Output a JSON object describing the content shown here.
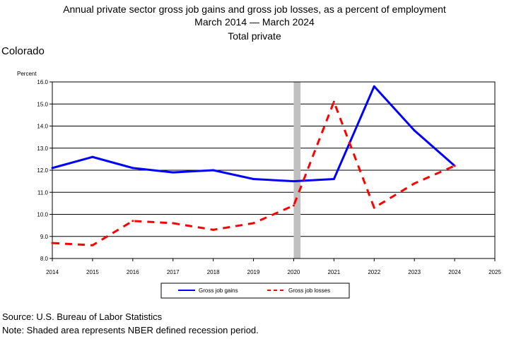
{
  "header": {
    "title_line1": "Annual private sector gross job gains and gross job losses, as a percent of employment",
    "title_line2": "March 2014 — March 2024",
    "title_line3": "Total private",
    "region": "Colorado"
  },
  "footer": {
    "source": "Source: U.S. Bureau of Labor Statistics",
    "note": "Note: Shaded area represents NBER defined recession period."
  },
  "chart_data": {
    "type": "line",
    "ylabel": "Percent",
    "xlabel": "",
    "xlim": [
      2014,
      2025
    ],
    "ylim": [
      8.0,
      16.0
    ],
    "x_ticks": [
      2014,
      2015,
      2016,
      2017,
      2018,
      2019,
      2020,
      2021,
      2022,
      2023,
      2024,
      2025
    ],
    "y_ticks": [
      "8.0",
      "9.0",
      "10.0",
      "11.0",
      "12.0",
      "13.0",
      "14.0",
      "15.0",
      "16.0"
    ],
    "grid": true,
    "recession": {
      "start": 2020.0,
      "end": 2020.17
    },
    "x": [
      2014,
      2015,
      2016,
      2017,
      2018,
      2019,
      2020,
      2021,
      2022,
      2023,
      2024
    ],
    "series": [
      {
        "name": "Gross job gains",
        "color": "#0000ff",
        "dash": "solid",
        "values": [
          12.1,
          12.6,
          12.1,
          11.9,
          12.0,
          11.6,
          11.5,
          11.6,
          15.8,
          13.8,
          12.2
        ]
      },
      {
        "name": "Gross job losses",
        "color": "#ff0000",
        "dash": "dashed",
        "values": [
          8.7,
          8.6,
          9.7,
          9.6,
          9.3,
          9.6,
          10.4,
          15.1,
          10.3,
          11.4,
          12.2
        ]
      }
    ],
    "legend_position": "bottom"
  }
}
